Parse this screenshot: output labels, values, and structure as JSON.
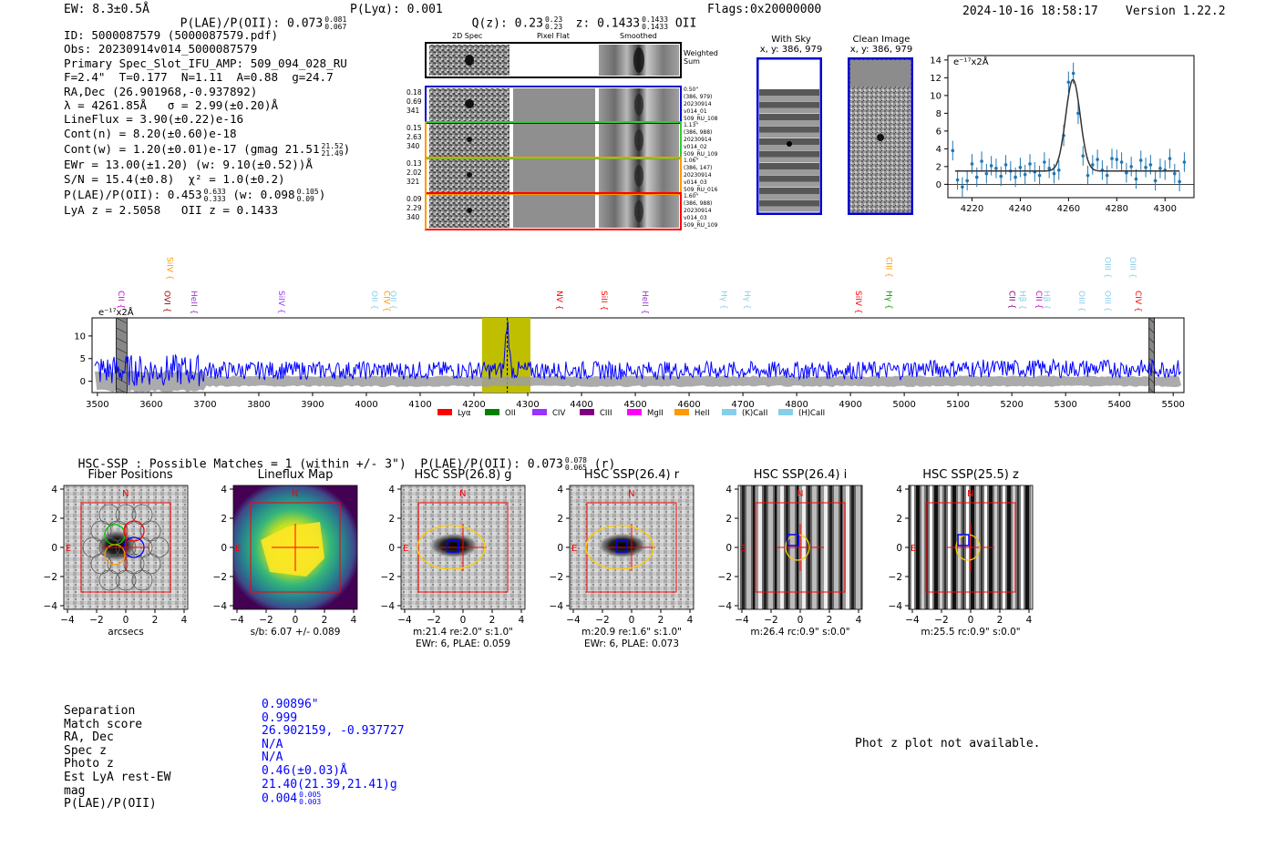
{
  "header": {
    "ew": "EW: 8.3±0.5Å",
    "plae_label": "P(LAE)/P(OII): 0.073",
    "plae_hi": "0.081",
    "plae_lo": "0.067",
    "plya": "P(Lyα): 0.001",
    "qz_label": "Q(z): 0.23",
    "qz_hi": "0.23",
    "qz_lo": "0.23",
    "z_label": "z: 0.1433",
    "z_hi": "0.1433",
    "z_lo": "0.1433",
    "z_line": "OII",
    "flags": "Flags:0x20000000",
    "timestamp": "2024-10-16 18:58:17",
    "version": "Version 1.22.2"
  },
  "info": {
    "id": "ID: 5000087579 (5000087579.pdf)",
    "obs": "Obs: 20230914v014_5000087579",
    "primary": "Primary Spec_Slot_IFU_AMP: 509_094_028_RU",
    "fiber": "F=2.4\"  T=0.177  N=1.11  A=0.88  g=24.7",
    "radec": "RA,Dec (26.901968,-0.937892)",
    "lambda": "λ = 4261.85Å   σ = 2.99(±0.20)Å",
    "lineflux": "LineFlux = 3.90(±0.22)e-16",
    "contn": "Cont(n) = 8.20(±0.60)e-18",
    "contw": "Cont(w) = 1.20(±0.01)e-17 (gmag 21.51",
    "contw_hi": "21.52",
    "contw_lo": "21.49",
    "ewr": "EWr = 13.00(±1.20) (w: 9.10(±0.52))Å",
    "sn": "S/N = 15.4(±0.8)  χ² = 1.0(±0.2)",
    "plae": "P(LAE)/P(OII): 0.453",
    "plae_hi": "0.633",
    "plae_lo": "0.333",
    "plae_w": "(w: 0.098",
    "plae_w_hi": "0.105",
    "plae_w_lo": "0.09",
    "lyaz": "LyA z = 2.5058   OII z = 0.1433"
  },
  "cutouts": {
    "col_2d": "2D Spec",
    "col_flat": "Pixel Flat",
    "col_smooth": "Smoothed",
    "weighted": "Weighted Sum",
    "rows": [
      {
        "left": [
          "0.18",
          "0.69",
          "341"
        ],
        "right": [
          "0.50\"",
          "(386, 979)",
          "20230914",
          "v014_01",
          "509_RU_108"
        ],
        "color": "#0000cc"
      },
      {
        "left": [
          "0.15",
          "2.63",
          "340"
        ],
        "right": [
          "1.13\"",
          "(386, 988)",
          "20230914",
          "v014_02",
          "509_RU_109"
        ],
        "color": "#33cc33"
      },
      {
        "left": [
          "0.13",
          "2.02",
          "321"
        ],
        "right": [
          "1.06\"",
          "(386, 147)",
          "20230914",
          "v014_03",
          "509_RU_016"
        ],
        "color": "#ff9900"
      },
      {
        "left": [
          "0.09",
          "2.29",
          "340"
        ],
        "right": [
          "1.60\"",
          "(386, 988)",
          "20230914",
          "v014_03",
          "509_RU_109"
        ],
        "color": "#ff0000"
      }
    ]
  },
  "sky": {
    "with_sky": "With Sky",
    "with_sky_xy": "x, y: 386, 979",
    "clean": "Clean Image",
    "clean_xy": "x, y: 386, 979"
  },
  "chart_data": [
    {
      "type": "scatter",
      "name": "line-fit",
      "ylabel": "e⁻¹⁷x2Å",
      "xlim": [
        4210,
        4312
      ],
      "ylim": [
        -1.5,
        14.5
      ],
      "xticks": [
        "4220",
        "4240",
        "4260",
        "4280",
        "4300"
      ],
      "yticks": [
        "0",
        "2",
        "4",
        "6",
        "8",
        "10",
        "12",
        "14"
      ],
      "fit": {
        "center": 4261.85,
        "sigma": 2.99,
        "peak": 10.3,
        "continuum": 1.5
      },
      "points": {
        "x": [
          4212,
          4214,
          4216,
          4218,
          4220,
          4222,
          4224,
          4226,
          4228,
          4230,
          4232,
          4234,
          4236,
          4238,
          4240,
          4242,
          4244,
          4246,
          4248,
          4250,
          4252,
          4254,
          4256,
          4258,
          4260,
          4262,
          4264,
          4266,
          4268,
          4270,
          4272,
          4274,
          4276,
          4278,
          4280,
          4282,
          4284,
          4286,
          4288,
          4290,
          4292,
          4294,
          4296,
          4298,
          4300,
          4302,
          4304,
          4306,
          4308
        ],
        "y": [
          3.8,
          0.5,
          -0.3,
          0.4,
          2.3,
          0.8,
          2.6,
          1.2,
          2.1,
          1.8,
          0.9,
          2.2,
          1.5,
          0.8,
          1.9,
          1.1,
          2.3,
          1.4,
          1.0,
          2.5,
          1.8,
          1.2,
          1.6,
          5.5,
          11.5,
          12.5,
          8.0,
          3.2,
          1.0,
          2.2,
          2.8,
          1.6,
          1.0,
          2.9,
          2.8,
          2.5,
          1.3,
          2.0,
          0.6,
          2.7,
          1.9,
          2.2,
          0.4,
          1.8,
          1.6,
          2.9,
          1.2,
          0.3,
          2.5
        ]
      }
    },
    {
      "type": "line",
      "name": "full-spectrum",
      "ylabel": "e⁻¹⁷x2Å",
      "xlim": [
        3490,
        5520
      ],
      "ylim": [
        -2.5,
        14
      ],
      "xticks": [
        "3500",
        "3600",
        "3700",
        "3800",
        "3900",
        "4000",
        "4100",
        "4200",
        "4300",
        "4400",
        "4500",
        "4600",
        "4700",
        "4800",
        "4900",
        "5000",
        "5100",
        "5200",
        "5300",
        "5400",
        "5500"
      ],
      "yticks": [
        "0",
        "5",
        "10"
      ],
      "highlight": [
        4215,
        4305
      ],
      "masked": [
        [
          3535,
          3555
        ],
        [
          5455,
          5465
        ]
      ],
      "lines": [
        {
          "label": "CII",
          "x": 3534,
          "color": "#cc00cc",
          "row": 1
        },
        {
          "label": "SiIV",
          "x": 3625,
          "color": "#ff9900",
          "row": 0
        },
        {
          "label": "OVI",
          "x": 3620,
          "color": "#990000",
          "row": 1
        },
        {
          "label": "HeII",
          "x": 3670,
          "color": "#9933cc",
          "row": 1
        },
        {
          "label": "SiIV",
          "x": 3832,
          "color": "#9933ff",
          "row": 1
        },
        {
          "label": "OII",
          "x": 4005,
          "color": "#87ceeb",
          "row": 1
        },
        {
          "label": "CIV",
          "x": 4028,
          "color": "#ff9900",
          "row": 1
        },
        {
          "label": "OII",
          "x": 4040,
          "color": "#87ceeb",
          "row": 1
        },
        {
          "label": "NV",
          "x": 4349,
          "color": "#ff0000",
          "row": 1
        },
        {
          "label": "SiII",
          "x": 4432,
          "color": "#ff0000",
          "row": 1
        },
        {
          "label": "HeII",
          "x": 4508,
          "color": "#9933cc",
          "row": 1
        },
        {
          "label": "Hγ",
          "x": 4655,
          "color": "#87ceeb",
          "row": 1
        },
        {
          "label": "Hγ",
          "x": 4698,
          "color": "#87ceeb",
          "row": 1
        },
        {
          "label": "SiIV",
          "x": 4905,
          "color": "#ff0000",
          "row": 1
        },
        {
          "label": "CIII",
          "x": 4962,
          "color": "#ff9900",
          "row": 0
        },
        {
          "label": "Hγ",
          "x": 4962,
          "color": "#009900",
          "row": 1
        },
        {
          "label": "CII",
          "x": 5190,
          "color": "#800080",
          "row": 1
        },
        {
          "label": "Hβ",
          "x": 5210,
          "color": "#87ceeb",
          "row": 1
        },
        {
          "label": "CII",
          "x": 5240,
          "color": "#cc00cc",
          "row": 1
        },
        {
          "label": "Hβ",
          "x": 5255,
          "color": "#87ceeb",
          "row": 1
        },
        {
          "label": "OIII",
          "x": 5320,
          "color": "#87ceeb",
          "row": 1
        },
        {
          "label": "OIII",
          "x": 5368,
          "color": "#87ceeb",
          "row": 0
        },
        {
          "label": "OIII",
          "x": 5368,
          "color": "#87ceeb",
          "row": 1
        },
        {
          "label": "OIII",
          "x": 5415,
          "color": "#87ceeb",
          "row": 0
        },
        {
          "label": "CIV",
          "x": 5425,
          "color": "#ff0000",
          "row": 1
        }
      ],
      "legend": [
        {
          "label": "Lyα",
          "color": "#ff0000"
        },
        {
          "label": "OII",
          "color": "#008000"
        },
        {
          "label": "CIV",
          "color": "#9933ff"
        },
        {
          "label": "CIII",
          "color": "#800080"
        },
        {
          "label": "MgII",
          "color": "#ff00ff"
        },
        {
          "label": "HeII",
          "color": "#ff9900"
        },
        {
          "label": "(K)CaII",
          "color": "#87ceeb"
        },
        {
          "label": "(H)CaII",
          "color": "#87ceeb"
        }
      ]
    }
  ],
  "matches": {
    "title": "HSC-SSP : Possible Matches = 1 (within +/- 3\")  P(LAE)/P(OII): 0.073",
    "title_hi": "0.078",
    "title_lo": "0.065",
    "title_band": "(r)"
  },
  "thumbs": {
    "ticks": [
      "−4",
      "−2",
      "0",
      "2",
      "4"
    ],
    "north": "N",
    "east": "E",
    "panels": [
      {
        "title": "Fiber Positions",
        "caption1": "arcsecs",
        "caption2": ""
      },
      {
        "title": "Lineflux Map",
        "caption1": "s/b: 6.07 +/- 0.089",
        "caption2": ""
      },
      {
        "title": "HSC SSP(26.8) g",
        "caption1": "m:21.4  re:2.0\"  s:1.0\"",
        "caption2": "EWr: 6, PLAE: 0.059"
      },
      {
        "title": "HSC SSP(26.4) r",
        "caption1": "m:20.9  re:1.6\"  s:1.0\"",
        "caption2": "EWr: 6, PLAE: 0.073"
      },
      {
        "title": "HSC SSP(26.4) i",
        "caption1": "m:26.4  rc:0.9\"  s:0.0\"",
        "caption2": ""
      },
      {
        "title": "HSC SSP(25.5) z",
        "caption1": "m:25.5  rc:0.9\"  s:0.0\"",
        "caption2": ""
      }
    ]
  },
  "match_table": {
    "labels": [
      "Separation",
      "Match score",
      "RA, Dec",
      "Spec z",
      "Photo z",
      "Est LyA rest-EW",
      "mag",
      "P(LAE)/P(OII)"
    ],
    "values": [
      "0.90896\"",
      "0.999",
      "26.902159, -0.937727",
      "N/A",
      "N/A",
      "0.46(±0.03)Å",
      "21.40(21.39,21.41)g",
      "0.004"
    ],
    "plae_hi": "0.005",
    "plae_lo": "0.003"
  },
  "photz": "Phot z plot not available.",
  "colors": {
    "spectrum": "#0000ff",
    "fit": "#333333",
    "points": "#1f77b4",
    "highlight": "#bfbf00",
    "catalog": "#ff0000"
  }
}
